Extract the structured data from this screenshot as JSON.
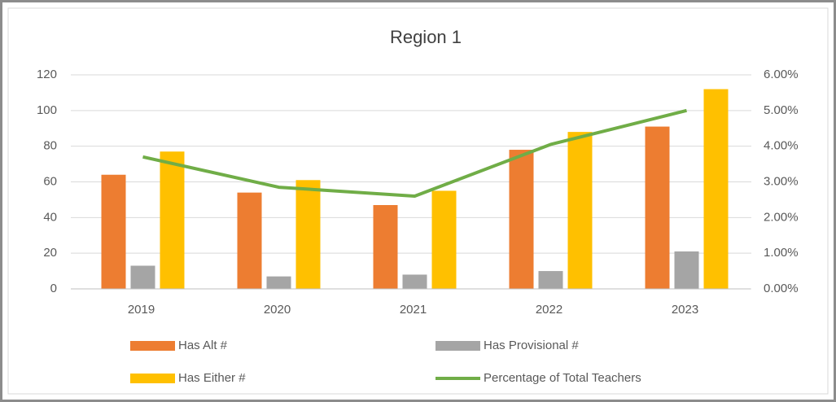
{
  "chart_data": {
    "type": "bar",
    "title": "Region 1",
    "categories": [
      "2019",
      "2020",
      "2021",
      "2022",
      "2023"
    ],
    "series": [
      {
        "name": "Has Alt #",
        "color": "#ed7d31",
        "values": [
          64,
          54,
          47,
          78,
          91
        ]
      },
      {
        "name": "Has Provisional #",
        "color": "#a5a5a5",
        "values": [
          13,
          7,
          8,
          10,
          21
        ]
      },
      {
        "name": "Has Either #",
        "color": "#ffc000",
        "values": [
          77,
          61,
          55,
          88,
          112
        ]
      },
      {
        "name": "Percentage of Total Teachers",
        "color": "#70ad47",
        "type": "line",
        "axis": "y2",
        "values": [
          3.7,
          2.85,
          2.6,
          4.05,
          5.0
        ]
      }
    ],
    "ylim": [
      0,
      120
    ],
    "yticks": [
      0,
      20,
      40,
      60,
      80,
      100,
      120
    ],
    "y2lim": [
      0,
      6
    ],
    "y2ticks": [
      {
        "value": 0,
        "label": "0.00%"
      },
      {
        "value": 1,
        "label": "1.00%"
      },
      {
        "value": 2,
        "label": "2.00%"
      },
      {
        "value": 3,
        "label": "3.00%"
      },
      {
        "value": 4,
        "label": "4.00%"
      },
      {
        "value": 5,
        "label": "5.00%"
      },
      {
        "value": 6,
        "label": "6.00%"
      }
    ],
    "grid": true,
    "legend": "bottom"
  }
}
